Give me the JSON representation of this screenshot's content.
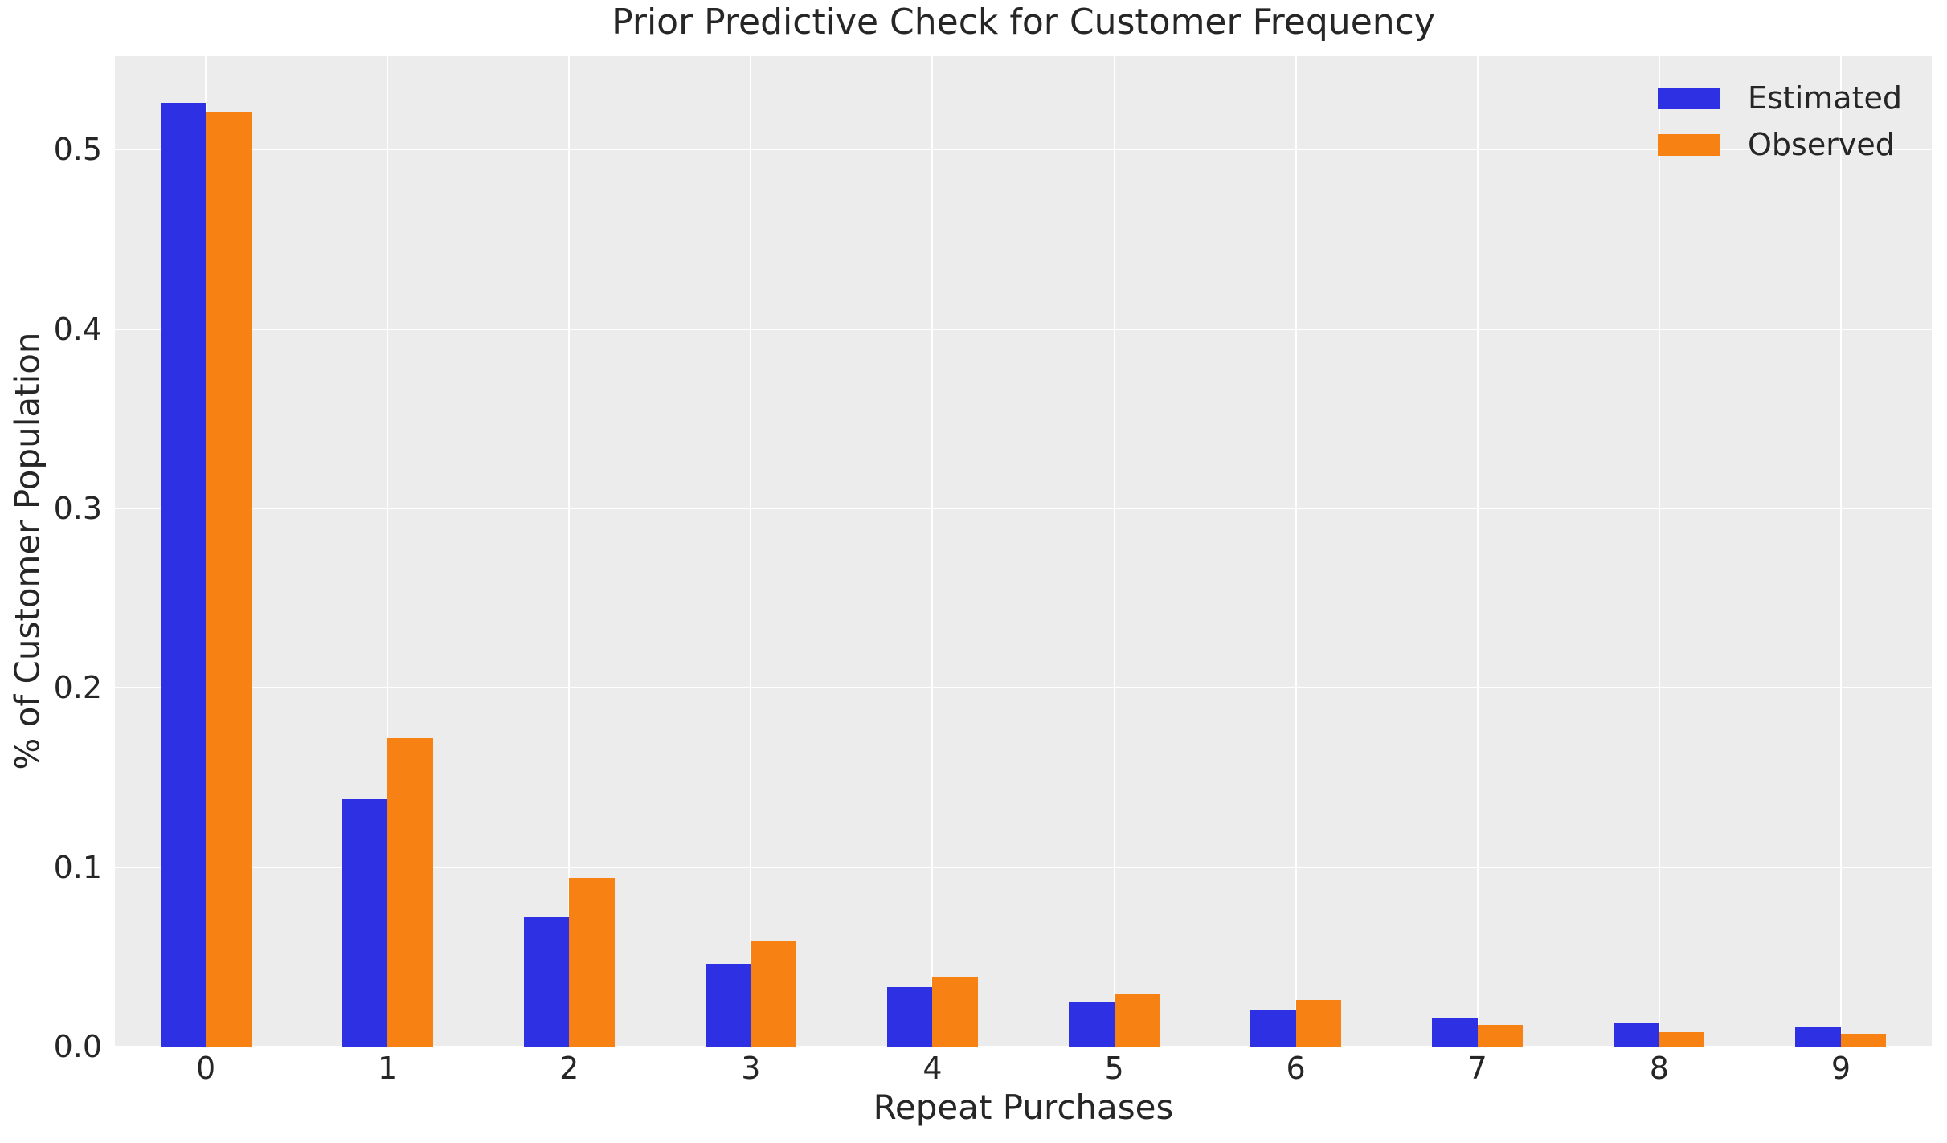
{
  "title": "Prior Predictive Check for Customer Frequency",
  "axes": {
    "xlabel": "Repeat Purchases",
    "ylabel": "% of Customer Population"
  },
  "legend": {
    "position": "upper right",
    "items": [
      {
        "label": "Estimated",
        "color": "#2d30e3"
      },
      {
        "label": "Observed",
        "color": "#f88114"
      }
    ]
  },
  "style": {
    "figure_bg": "#ffffff",
    "plot_bg": "#ececec",
    "grid_color": "#ffffff",
    "text_color": "#262626"
  },
  "chart_data": {
    "type": "bar",
    "title": "Prior Predictive Check for Customer Frequency",
    "xlabel": "Repeat Purchases",
    "ylabel": "% of Customer Population",
    "categories": [
      "0",
      "1",
      "2",
      "3",
      "4",
      "5",
      "6",
      "7",
      "8",
      "9"
    ],
    "series": [
      {
        "name": "Estimated",
        "color": "#2d30e3",
        "values": [
          0.526,
          0.138,
          0.072,
          0.046,
          0.033,
          0.025,
          0.02,
          0.016,
          0.013,
          0.011
        ]
      },
      {
        "name": "Observed",
        "color": "#f88114",
        "values": [
          0.521,
          0.172,
          0.094,
          0.059,
          0.039,
          0.029,
          0.026,
          0.012,
          0.008,
          0.007
        ]
      }
    ],
    "ylim": [
      0,
      0.552
    ],
    "yticks": [
      0.0,
      0.1,
      0.2,
      0.3,
      0.4,
      0.5
    ],
    "ytick_labels": [
      "0.0",
      "0.1",
      "0.2",
      "0.3",
      "0.4",
      "0.5"
    ],
    "grid": true,
    "legend_position": "upper right",
    "bar_width_fraction": 0.25
  }
}
